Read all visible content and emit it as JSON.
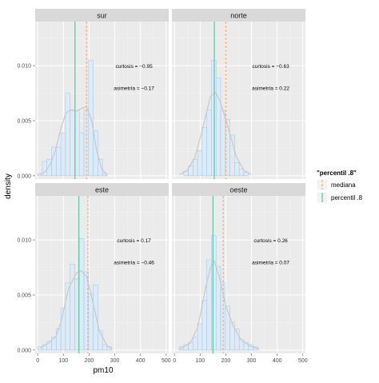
{
  "chart_data": {
    "type": "histogram",
    "facet_by": "zona",
    "xlabel": "pm10",
    "ylabel": "density",
    "xlim": [
      -10,
      510
    ],
    "ylim": [
      -0.0003,
      0.014
    ],
    "x_ticks": [
      0,
      100,
      200,
      300,
      400,
      500
    ],
    "y_ticks": [
      0.0,
      0.005,
      0.01
    ],
    "y_tick_labels": [
      "0.000",
      "0.005",
      "0.010"
    ],
    "bin_width": 18,
    "grid": true,
    "legend_position": "right",
    "legend": {
      "title": "\"percentil .8\"",
      "items": [
        {
          "label": "mediana",
          "color": "#F4B183",
          "dashed": true
        },
        {
          "label": "percentil .8",
          "color": "#66CDAA",
          "dashed": false
        }
      ]
    },
    "colors": {
      "panel_bg": "#EBEBEB",
      "strip_bg": "#D9D9D9",
      "grid": "#FFFFFF",
      "bar_fill": "#DEEBF7",
      "bar_stroke": "#9DC3E6",
      "density_line": "#C8C8C8",
      "median_line": "#F4B183",
      "p80_line": "#66CDAA"
    },
    "panels": [
      {
        "name": "sur",
        "bins": [
          [
            0,
            0.0002
          ],
          [
            18,
            0.0013
          ],
          [
            36,
            0.0015
          ],
          [
            54,
            0.0026
          ],
          [
            72,
            0.0026
          ],
          [
            90,
            0.0039
          ],
          [
            108,
            0.0075
          ],
          [
            126,
            0.0059
          ],
          [
            144,
            0.0059
          ],
          [
            162,
            0.0039
          ],
          [
            180,
            0.006
          ],
          [
            198,
            0.0105
          ],
          [
            216,
            0.0041
          ],
          [
            234,
            0.0015
          ],
          [
            252,
            0.0002
          ]
        ],
        "density": [
          [
            10,
            0.0001
          ],
          [
            30,
            0.0004
          ],
          [
            50,
            0.0011
          ],
          [
            70,
            0.0024
          ],
          [
            90,
            0.0043
          ],
          [
            110,
            0.0057
          ],
          [
            130,
            0.006
          ],
          [
            150,
            0.0059
          ],
          [
            170,
            0.0061
          ],
          [
            190,
            0.0063
          ],
          [
            210,
            0.005
          ],
          [
            230,
            0.0022
          ],
          [
            250,
            0.0006
          ],
          [
            270,
            0.0001
          ]
        ],
        "median": 190,
        "p80": 145,
        "curtosis": "curtosis = −0.95",
        "asimetria": "asimetría = −0.17"
      },
      {
        "name": "norte",
        "bins": [
          [
            36,
            0.0004
          ],
          [
            54,
            0.0009
          ],
          [
            72,
            0.0015
          ],
          [
            90,
            0.0023
          ],
          [
            108,
            0.0044
          ],
          [
            126,
            0.006
          ],
          [
            144,
            0.0105
          ],
          [
            162,
            0.0089
          ],
          [
            180,
            0.0059
          ],
          [
            198,
            0.0051
          ],
          [
            216,
            0.0037
          ],
          [
            234,
            0.0012
          ],
          [
            252,
            0.0006
          ],
          [
            270,
            0.0003
          ]
        ],
        "density": [
          [
            20,
            0.0001
          ],
          [
            50,
            0.0005
          ],
          [
            80,
            0.0017
          ],
          [
            110,
            0.0043
          ],
          [
            140,
            0.0072
          ],
          [
            160,
            0.0076
          ],
          [
            180,
            0.0066
          ],
          [
            210,
            0.0043
          ],
          [
            240,
            0.0018
          ],
          [
            270,
            0.0005
          ],
          [
            300,
            0.0001
          ]
        ],
        "median": 200,
        "p80": 155,
        "curtosis": "curtosis = −0.63",
        "asimetria": "asimetría = 0.22"
      },
      {
        "name": "este",
        "bins": [
          [
            0,
            0.0003
          ],
          [
            18,
            0.0005
          ],
          [
            36,
            0.0008
          ],
          [
            54,
            0.0012
          ],
          [
            72,
            0.0019
          ],
          [
            90,
            0.0038
          ],
          [
            108,
            0.0061
          ],
          [
            126,
            0.0078
          ],
          [
            144,
            0.0065
          ],
          [
            162,
            0.0101
          ],
          [
            180,
            0.0071
          ],
          [
            198,
            0.0051
          ],
          [
            216,
            0.0059
          ],
          [
            234,
            0.0018
          ],
          [
            252,
            0.0005
          ],
          [
            270,
            0.0003
          ]
        ],
        "density": [
          [
            10,
            0.0002
          ],
          [
            40,
            0.0006
          ],
          [
            70,
            0.0012
          ],
          [
            90,
            0.0025
          ],
          [
            120,
            0.0056
          ],
          [
            150,
            0.007
          ],
          [
            170,
            0.0072
          ],
          [
            190,
            0.0067
          ],
          [
            210,
            0.0048
          ],
          [
            240,
            0.0017
          ],
          [
            270,
            0.0004
          ],
          [
            290,
            0.0001
          ]
        ],
        "median": 195,
        "p80": 160,
        "curtosis": "curtosis = 0.17",
        "asimetria": "asimetría = −0.46"
      },
      {
        "name": "oeste",
        "bins": [
          [
            18,
            0.0003
          ],
          [
            36,
            0.0005
          ],
          [
            54,
            0.0007
          ],
          [
            72,
            0.0012
          ],
          [
            90,
            0.0024
          ],
          [
            108,
            0.0045
          ],
          [
            126,
            0.0082
          ],
          [
            144,
            0.0104
          ],
          [
            162,
            0.0076
          ],
          [
            180,
            0.0061
          ],
          [
            198,
            0.004
          ],
          [
            216,
            0.0025
          ],
          [
            234,
            0.0019
          ],
          [
            252,
            0.001
          ],
          [
            270,
            0.0007
          ],
          [
            288,
            0.0005
          ],
          [
            306,
            0.0003
          ]
        ],
        "density": [
          [
            20,
            0.0001
          ],
          [
            60,
            0.0006
          ],
          [
            90,
            0.002
          ],
          [
            120,
            0.0055
          ],
          [
            140,
            0.0075
          ],
          [
            155,
            0.0081
          ],
          [
            175,
            0.0066
          ],
          [
            200,
            0.004
          ],
          [
            230,
            0.0021
          ],
          [
            260,
            0.0009
          ],
          [
            300,
            0.0003
          ],
          [
            330,
            0.0001
          ]
        ],
        "median": 190,
        "p80": 150,
        "curtosis": "curtosis = 0.26",
        "asimetria": "asimetría = 0.07"
      }
    ]
  }
}
